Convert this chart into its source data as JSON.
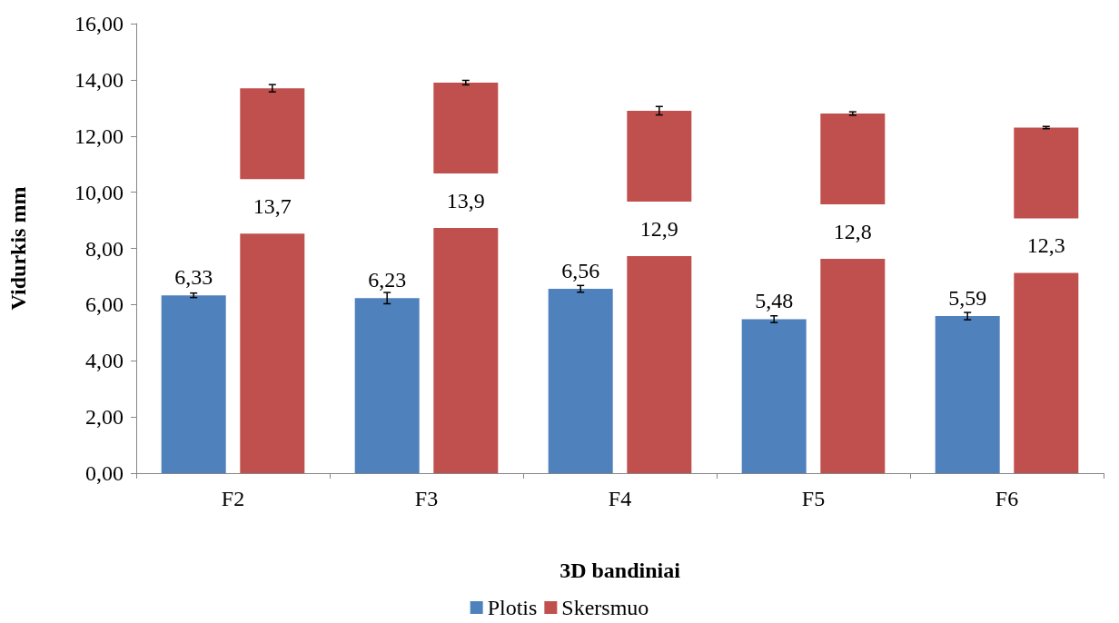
{
  "chart_data": {
    "type": "bar",
    "xlabel": "3D bandiniai",
    "ylabel": "Vidurkis mm",
    "categories": [
      "F2",
      "F3",
      "F4",
      "F5",
      "F6"
    ],
    "series": [
      {
        "name": "Plotis",
        "color": "#4f81bd",
        "values": [
          6.33,
          6.23,
          6.56,
          5.48,
          5.59
        ],
        "errors": [
          0.08,
          0.2,
          0.12,
          0.12,
          0.13
        ],
        "value_labels": [
          "6,33",
          "6,23",
          "6,56",
          "5,48",
          "5,59"
        ]
      },
      {
        "name": "Skersmuo",
        "color": "#c0504d",
        "values": [
          13.7,
          13.9,
          12.9,
          12.8,
          12.3
        ],
        "errors": [
          0.13,
          0.08,
          0.15,
          0.06,
          0.04
        ],
        "value_labels": [
          "13,7",
          "13,9",
          "12,9",
          "12,8",
          "12,3"
        ]
      }
    ],
    "ylim": [
      0,
      16
    ],
    "yticks": [
      {
        "value": 0,
        "label": "0,00"
      },
      {
        "value": 2,
        "label": "2,00"
      },
      {
        "value": 4,
        "label": "4,00"
      },
      {
        "value": 6,
        "label": "6,00"
      },
      {
        "value": 8,
        "label": "8,00"
      },
      {
        "value": 10,
        "label": "10,00"
      },
      {
        "value": 12,
        "label": "12,00"
      },
      {
        "value": 14,
        "label": "14,00"
      },
      {
        "value": 16,
        "label": "16,00"
      }
    ],
    "grid": false,
    "legend": "bottom"
  }
}
